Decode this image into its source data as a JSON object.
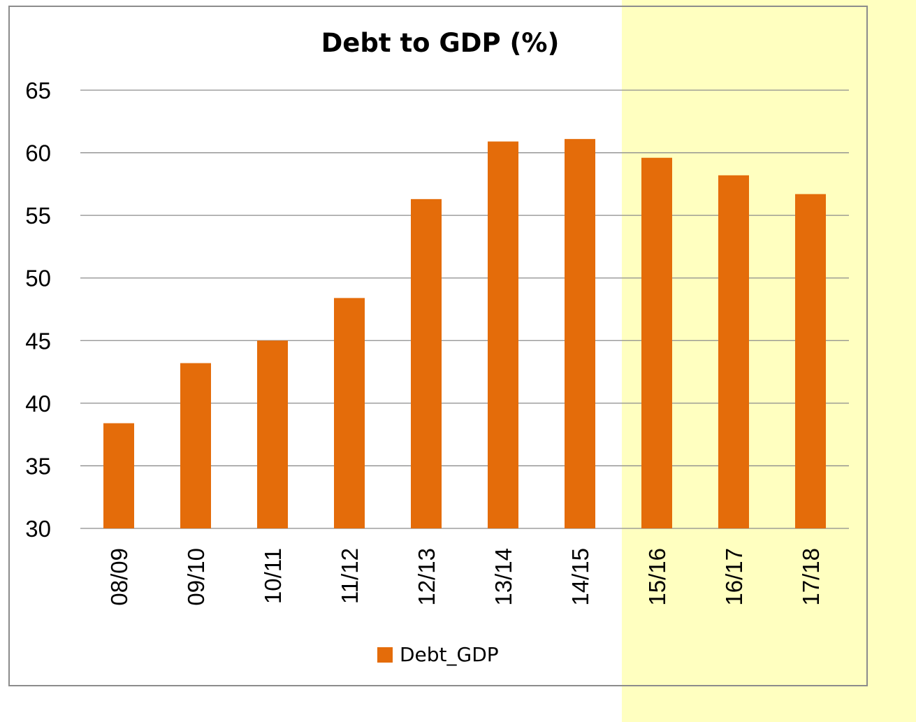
{
  "chart_data": {
    "type": "bar",
    "title": "Debt to GDP (%)",
    "categories": [
      "08/09",
      "09/10",
      "10/11",
      "11/12",
      "12/13",
      "13/14",
      "14/15",
      "15/16",
      "16/17",
      "17/18"
    ],
    "series": [
      {
        "name": "Debt_GDP",
        "values": [
          38.4,
          43.2,
          45.0,
          48.4,
          56.3,
          60.9,
          61.1,
          59.6,
          58.2,
          56.7
        ]
      }
    ],
    "ylim": [
      30,
      65
    ],
    "yticks": [
      "30",
      "35",
      "40",
      "45",
      "50",
      "55",
      "60",
      "65"
    ],
    "grid": true,
    "legend_position": "bottom",
    "highlighted_categories": [
      "15/16",
      "16/17",
      "17/18"
    ],
    "colors": {
      "bar": "#e46c0a",
      "highlight": "#ffffc0",
      "grid": "#8c8c8c",
      "border": "#8c8c8c"
    }
  }
}
